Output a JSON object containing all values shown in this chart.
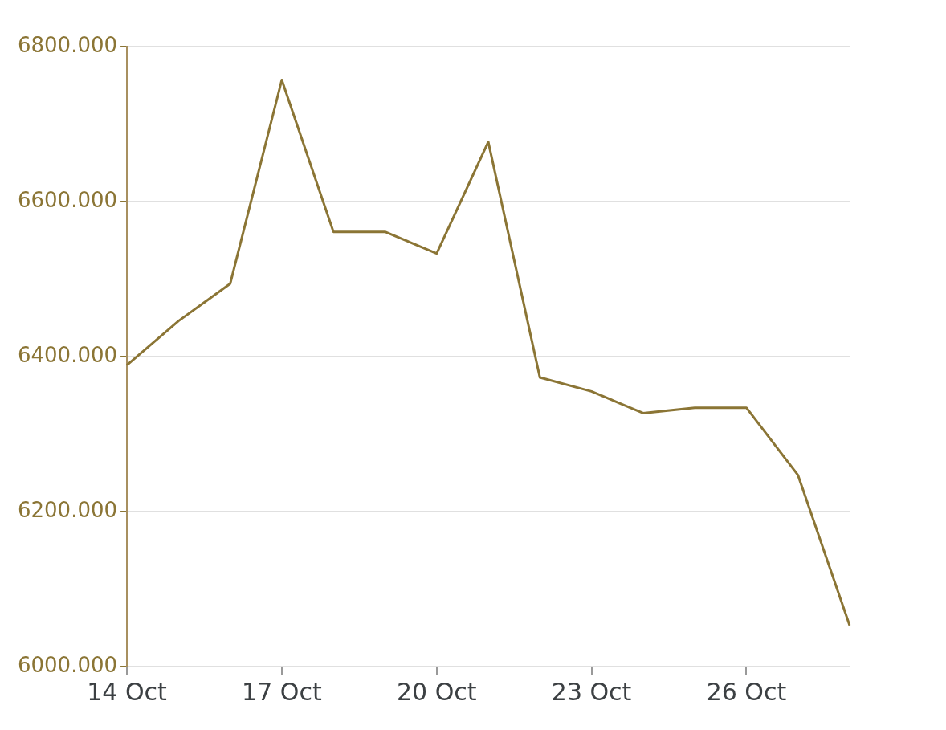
{
  "chart_data": {
    "type": "line",
    "categories": [
      "14 Oct",
      null,
      null,
      "17 Oct",
      null,
      null,
      "20 Oct",
      null,
      null,
      "23 Oct",
      null,
      null,
      "26 Oct",
      null,
      null
    ],
    "values": [
      6389,
      6446,
      6494,
      6757,
      6561,
      6561,
      6533,
      6677,
      6373,
      6355,
      6327,
      6334,
      6334,
      6247,
      6053
    ],
    "color": "#8b7535",
    "ylim": [
      6000,
      6800
    ],
    "yticks": [
      {
        "value": 6000,
        "label": "6000.000"
      },
      {
        "value": 6200,
        "label": "6200.000"
      },
      {
        "value": 6400,
        "label": "6400.000"
      },
      {
        "value": 6600,
        "label": "6600.000"
      },
      {
        "value": 6800,
        "label": "6800.000"
      }
    ],
    "grid": "y"
  }
}
